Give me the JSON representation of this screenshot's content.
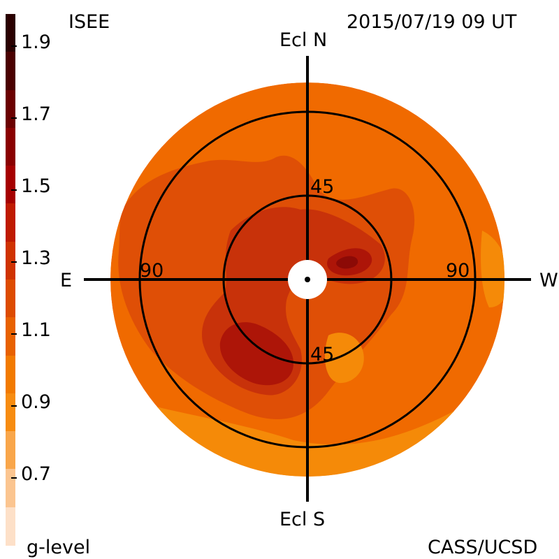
{
  "header": {
    "source": "ISEE",
    "timestamp": "2015/07/19 09 UT",
    "credit": "CASS/UCSD"
  },
  "colorbar": {
    "title": "g-level",
    "tick_labels": [
      "1.9",
      "1.7",
      "1.5",
      "1.3",
      "1.1",
      "0.9",
      "0.7"
    ],
    "colors": [
      "#2a0000",
      "#4a0000",
      "#6b0000",
      "#8a0000",
      "#a60000",
      "#bf1a00",
      "#cf3200",
      "#dd4b00",
      "#e86100",
      "#f27a00",
      "#f78c10",
      "#f9a64a",
      "#fbc590",
      "#fde0c8"
    ]
  },
  "map": {
    "north_label": "Ecl N",
    "south_label": "Ecl S",
    "east_label": "E",
    "west_label": "W",
    "inner_ring": {
      "elongation": "45",
      "north_label": "45",
      "south_label": "45"
    },
    "outer_ring": {
      "elongation": "90",
      "east_label": "90",
      "west_label": "90"
    },
    "colors": {
      "background": "#f06a00",
      "mid": "#df4f06",
      "dark": "#c8320a",
      "darker": "#ad1508",
      "darkest": "#8c0a06",
      "light": "#f58a08"
    }
  }
}
